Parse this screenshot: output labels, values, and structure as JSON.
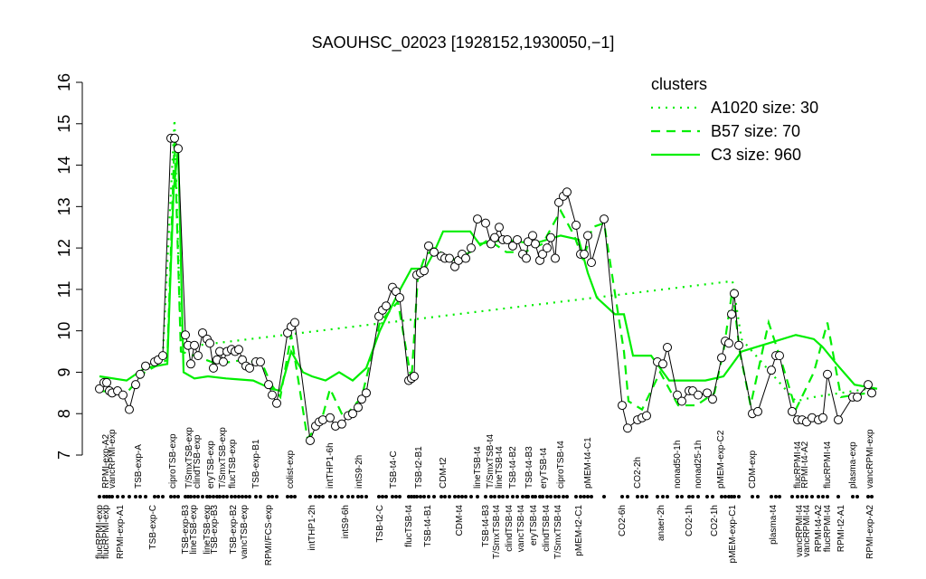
{
  "chart_data": {
    "type": "line",
    "title": "SAOUHSC_02023 [1928152,1930050,−1]",
    "xlim": [
      0,
      865
    ],
    "ylim": [
      7,
      16
    ],
    "yticks": [
      7,
      8,
      9,
      10,
      11,
      12,
      13,
      14,
      15,
      16
    ],
    "color": "#000000",
    "x": [
      5,
      10,
      13,
      16,
      19,
      25,
      31,
      38,
      45,
      50,
      56,
      66,
      70,
      75,
      84,
      88,
      92,
      100,
      103,
      106,
      110,
      114,
      119,
      124,
      127,
      131,
      135,
      138,
      142,
      146,
      151,
      155,
      159,
      163,
      167,
      171,
      178,
      183,
      192,
      196,
      201,
      213,
      217,
      221,
      238,
      244,
      248,
      252,
      260,
      266,
      273,
      280,
      285,
      291,
      295,
      300,
      314,
      318,
      322,
      329,
      333,
      337,
      347,
      350,
      353,
      356,
      360,
      364,
      369,
      375,
      383,
      387,
      392,
      398,
      402,
      406,
      410,
      416,
      423,
      432,
      438,
      442,
      447,
      451,
      456,
      462,
      467,
      473,
      477,
      479,
      484,
      487,
      492,
      495,
      500,
      504,
      509,
      513,
      518,
      522,
      532,
      537,
      541,
      545,
      549,
      563,
      583,
      589,
      600,
      605,
      610,
      622,
      628,
      633,
      644,
      649,
      657,
      661,
      667,
      677,
      683,
      693,
      697,
      701,
      704,
      707,
      712,
      727,
      733,
      748,
      753,
      757,
      771,
      777,
      782,
      787,
      793,
      800,
      805,
      810,
      822,
      838,
      843,
      855,
      859
    ],
    "values": [
      8.6,
      8.75,
      8.75,
      8.55,
      8.5,
      8.55,
      8.45,
      8.1,
      8.7,
      8.95,
      9.15,
      9.25,
      9.3,
      9.4,
      14.65,
      14.65,
      14.4,
      9.9,
      9.65,
      9.2,
      9.65,
      9.4,
      9.95,
      9.8,
      9.7,
      9.1,
      9.3,
      9.5,
      9.25,
      9.5,
      9.55,
      9.5,
      9.55,
      9.3,
      9.15,
      9.1,
      9.25,
      9.25,
      8.7,
      8.45,
      8.25,
      9.95,
      10.1,
      10.2,
      7.35,
      7.7,
      7.8,
      7.85,
      7.9,
      7.7,
      7.75,
      7.95,
      8.0,
      8.15,
      8.35,
      8.5,
      10.35,
      10.5,
      10.6,
      11.05,
      10.95,
      10.8,
      8.8,
      8.85,
      8.9,
      11.35,
      11.4,
      11.45,
      12.05,
      11.9,
      11.8,
      11.75,
      11.75,
      11.55,
      11.7,
      11.85,
      11.75,
      12.0,
      12.7,
      12.6,
      12.1,
      12.25,
      12.5,
      12.2,
      12.2,
      12.05,
      12.2,
      11.85,
      11.75,
      12.15,
      12.3,
      12.1,
      11.7,
      11.85,
      12.0,
      12.25,
      11.75,
      13.1,
      13.25,
      13.35,
      12.55,
      11.85,
      11.85,
      12.3,
      11.65,
      12.7,
      8.2,
      7.65,
      7.85,
      7.9,
      7.95,
      9.25,
      9.2,
      9.6,
      8.45,
      8.3,
      8.55,
      8.55,
      8.45,
      8.5,
      8.35,
      9.35,
      9.75,
      9.7,
      10.4,
      10.9,
      9.65,
      8.0,
      8.05,
      9.05,
      9.4,
      9.4,
      8.05,
      7.85,
      7.85,
      7.8,
      7.9,
      7.85,
      7.9,
      8.95,
      7.85,
      8.4,
      8.4,
      8.7,
      8.5
    ],
    "legend_title": "clusters",
    "legend": "top-right",
    "series": [
      {
        "name": "A1020 size: 30",
        "color": "#00ee00",
        "dash": "dotted",
        "x": [
          75,
          88,
          95,
          705,
          715,
          775,
          795,
          855
        ],
        "values": [
          9.4,
          15.1,
          9.6,
          11.2,
          9.8,
          8.3,
          8.4,
          8.6
        ]
      },
      {
        "name": "B57 size: 70",
        "color": "#00ee00",
        "dash": "dashed",
        "x": [
          5,
          35,
          55,
          80,
          88,
          95,
          110,
          135,
          165,
          185,
          195,
          205,
          217,
          235,
          250,
          260,
          275,
          295,
          315,
          335,
          350,
          357,
          365,
          375,
          395,
          415,
          435,
          455,
          475,
          495,
          515,
          530,
          540,
          550,
          563,
          585,
          590,
          605,
          625,
          645,
          665,
          685,
          695,
          705,
          713,
          725,
          745,
          760,
          775,
          795,
          810,
          825,
          855
        ],
        "values": [
          8.55,
          8.5,
          9.0,
          9.3,
          14.6,
          9.5,
          9.4,
          9.2,
          9.3,
          9.2,
          8.7,
          8.4,
          9.9,
          7.4,
          7.8,
          8.6,
          7.9,
          8.4,
          10.2,
          10.7,
          8.8,
          11.3,
          11.8,
          12.0,
          11.7,
          11.9,
          12.2,
          11.9,
          11.9,
          12.1,
          12.9,
          12.3,
          11.7,
          12.5,
          12.6,
          9.5,
          8.3,
          8.1,
          9.0,
          8.2,
          8.2,
          8.5,
          9.5,
          11.0,
          9.5,
          8.2,
          10.2,
          9.2,
          8.1,
          9.0,
          10.2,
          8.4,
          8.5
        ]
      },
      {
        "name": "C3 size: 960",
        "color": "#00ee00",
        "dash": "solid",
        "x": [
          5,
          35,
          55,
          80,
          87,
          92,
          98,
          110,
          125,
          145,
          175,
          195,
          205,
          217,
          230,
          240,
          255,
          270,
          285,
          300,
          315,
          335,
          350,
          365,
          375,
          385,
          415,
          425,
          455,
          485,
          515,
          535,
          545,
          555,
          565,
          575,
          585,
          595,
          615,
          635,
          675,
          695,
          715,
          745,
          775,
          795,
          805,
          820,
          840,
          865
        ],
        "values": [
          8.9,
          8.8,
          9.1,
          9.2,
          13.4,
          14.4,
          9.0,
          8.85,
          8.9,
          8.85,
          8.8,
          8.6,
          8.55,
          9.5,
          9.0,
          8.9,
          8.8,
          9.0,
          8.8,
          9.1,
          10.0,
          10.9,
          11.5,
          11.5,
          11.9,
          12.4,
          12.4,
          12.1,
          12.2,
          12.1,
          12.3,
          12.2,
          11.4,
          10.8,
          10.6,
          10.4,
          10.4,
          9.4,
          9.4,
          8.8,
          8.8,
          8.9,
          9.5,
          9.7,
          9.9,
          9.8,
          9.6,
          9.2,
          8.7,
          8.6
        ]
      }
    ],
    "xticks_top": [
      {
        "value": 12,
        "label": "RPMI-exp-A2"
      },
      {
        "value": 19,
        "label": "vancRPMI-exp"
      },
      {
        "value": 48,
        "label": "TSB-exp-A"
      },
      {
        "value": 86,
        "label": "ciproTSB-exp"
      },
      {
        "value": 104,
        "label": "T/SmxTSB-exp"
      },
      {
        "value": 113,
        "label": "clindTSB-exp"
      },
      {
        "value": 128,
        "label": "eryTSB-exp"
      },
      {
        "value": 141,
        "label": "T/SmxTSB-exp"
      },
      {
        "value": 152,
        "label": "flucTSB-exp"
      },
      {
        "value": 178,
        "label": "TSB-exp-B1"
      },
      {
        "value": 216,
        "label": "colist-exp"
      },
      {
        "value": 260,
        "label": "intTHP1-6h"
      },
      {
        "value": 292,
        "label": "intS9-2h"
      },
      {
        "value": 330,
        "label": "TSB-t4-C"
      },
      {
        "value": 358,
        "label": "TSB-t2-B1"
      },
      {
        "value": 385,
        "label": "CDM-t2"
      },
      {
        "value": 423,
        "label": "lineTSB-t4"
      },
      {
        "value": 437,
        "label": "T/SmxTSB-t4"
      },
      {
        "value": 447,
        "label": "lineTSB-t4"
      },
      {
        "value": 462,
        "label": "TSB-t4-B2"
      },
      {
        "value": 480,
        "label": "TSB-t4-B3"
      },
      {
        "value": 496,
        "label": "eryTSB-t4"
      },
      {
        "value": 515,
        "label": "ciproTSB-t4"
      },
      {
        "value": 545,
        "label": "pMEM-t4-C1"
      },
      {
        "value": 600,
        "label": "CO2-2h"
      },
      {
        "value": 644,
        "label": "nonad50-1h"
      },
      {
        "value": 667,
        "label": "nonad25-1h"
      },
      {
        "value": 692,
        "label": "pMEM-exp-C2"
      },
      {
        "value": 727,
        "label": "CDM-exp"
      },
      {
        "value": 777,
        "label": "flucRPMI-t4"
      },
      {
        "value": 785,
        "label": "RPMI-t4-A2"
      },
      {
        "value": 810,
        "label": "flucRPMI-t4"
      },
      {
        "value": 838,
        "label": "plasma-exp"
      },
      {
        "value": 857,
        "label": "vancRPMI-exp"
      }
    ],
    "xticks_bottom": [
      {
        "value": 5,
        "label": "flucRPMI-exp"
      },
      {
        "value": 12,
        "label": "flucRPMI-exp"
      },
      {
        "value": 28,
        "label": "RPMI-exp-A1"
      },
      {
        "value": 64,
        "label": "TSB-exp-C"
      },
      {
        "value": 100,
        "label": "TSB-exp-B3"
      },
      {
        "value": 109,
        "label": "lineTSB-exp"
      },
      {
        "value": 124,
        "label": "lineTSB-exp"
      },
      {
        "value": 132,
        "label": "TSB-exp-B3"
      },
      {
        "value": 153,
        "label": "TSB-exp-B2"
      },
      {
        "value": 165,
        "label": "vancTSB-exp"
      },
      {
        "value": 192,
        "label": "RPMI/FCS-exp"
      },
      {
        "value": 240,
        "label": "intTHP1-2h"
      },
      {
        "value": 277,
        "label": "intS9-6h"
      },
      {
        "value": 315,
        "label": "TSB-t2-C"
      },
      {
        "value": 347,
        "label": "flucTSB-t4"
      },
      {
        "value": 368,
        "label": "TSB-t4-B1"
      },
      {
        "value": 403,
        "label": "CDM-t4"
      },
      {
        "value": 432,
        "label": "TSB-t4-B3"
      },
      {
        "value": 444,
        "label": "T/SmxTSB-t4"
      },
      {
        "value": 458,
        "label": "clindTSB-t4"
      },
      {
        "value": 471,
        "label": "vancTSB-t4"
      },
      {
        "value": 485,
        "label": "eryTSB-t4"
      },
      {
        "value": 499,
        "label": "clindTSB-t4"
      },
      {
        "value": 512,
        "label": "T/SmxTSB-t4"
      },
      {
        "value": 535,
        "label": "pMEM-t2-C1"
      },
      {
        "value": 583,
        "label": "CO2-6h"
      },
      {
        "value": 626,
        "label": "anaer-2h"
      },
      {
        "value": 657,
        "label": "CO2-1h"
      },
      {
        "value": 685,
        "label": "CO2-1h"
      },
      {
        "value": 705,
        "label": "pMEM-exp-C1"
      },
      {
        "value": 750,
        "label": "plasma-t4"
      },
      {
        "value": 779,
        "label": "vancRPMI-t4"
      },
      {
        "value": 787,
        "label": "vancRPMI-t4"
      },
      {
        "value": 800,
        "label": "RPMI-t4-A2"
      },
      {
        "value": 810,
        "label": "flucRPMI-t4"
      },
      {
        "value": 825,
        "label": "RPMI-t2-A1"
      },
      {
        "value": 857,
        "label": "RPMI-exp-A2"
      }
    ]
  }
}
